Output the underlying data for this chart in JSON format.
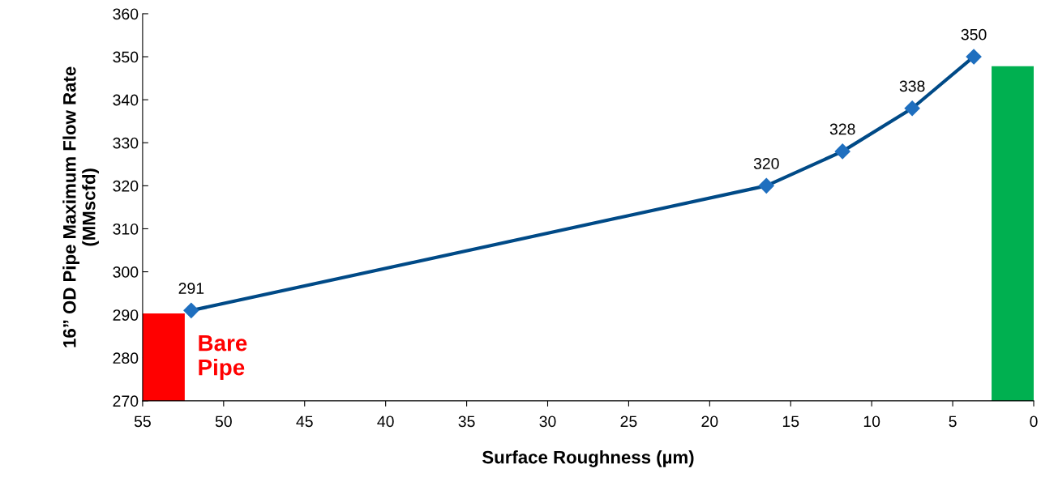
{
  "chart_data": {
    "type": "line",
    "xlabel": "Surface Roughness (µm)",
    "ylabel": "16” OD Pipe Maximum Flow Rate\n(MMscfd)",
    "xlim": [
      55,
      0
    ],
    "xticks": [
      55,
      50,
      45,
      40,
      35,
      30,
      25,
      20,
      15,
      10,
      5,
      0
    ],
    "ylim": [
      270,
      360
    ],
    "yticks": [
      270,
      280,
      290,
      300,
      310,
      320,
      330,
      340,
      350,
      360
    ],
    "series": [
      {
        "type": "bar",
        "x": [
          53.7
        ],
        "values": [
          290.3
        ],
        "color": "#ff0000"
      },
      {
        "type": "bar",
        "x": [
          1.3
        ],
        "values": [
          347.8
        ],
        "color": "#00b050"
      },
      {
        "x": [
          52.0,
          16.5,
          11.8,
          7.5,
          3.7
        ],
        "values": [
          291,
          320,
          328,
          338,
          350
        ],
        "color": "#004a87",
        "value_labels": [
          "291",
          "320",
          "328",
          "338",
          "350"
        ]
      }
    ],
    "marker": "diamond",
    "line_style": "solid",
    "grid": false,
    "legend": false,
    "annotations": [
      "Bare\nPipe"
    ]
  }
}
